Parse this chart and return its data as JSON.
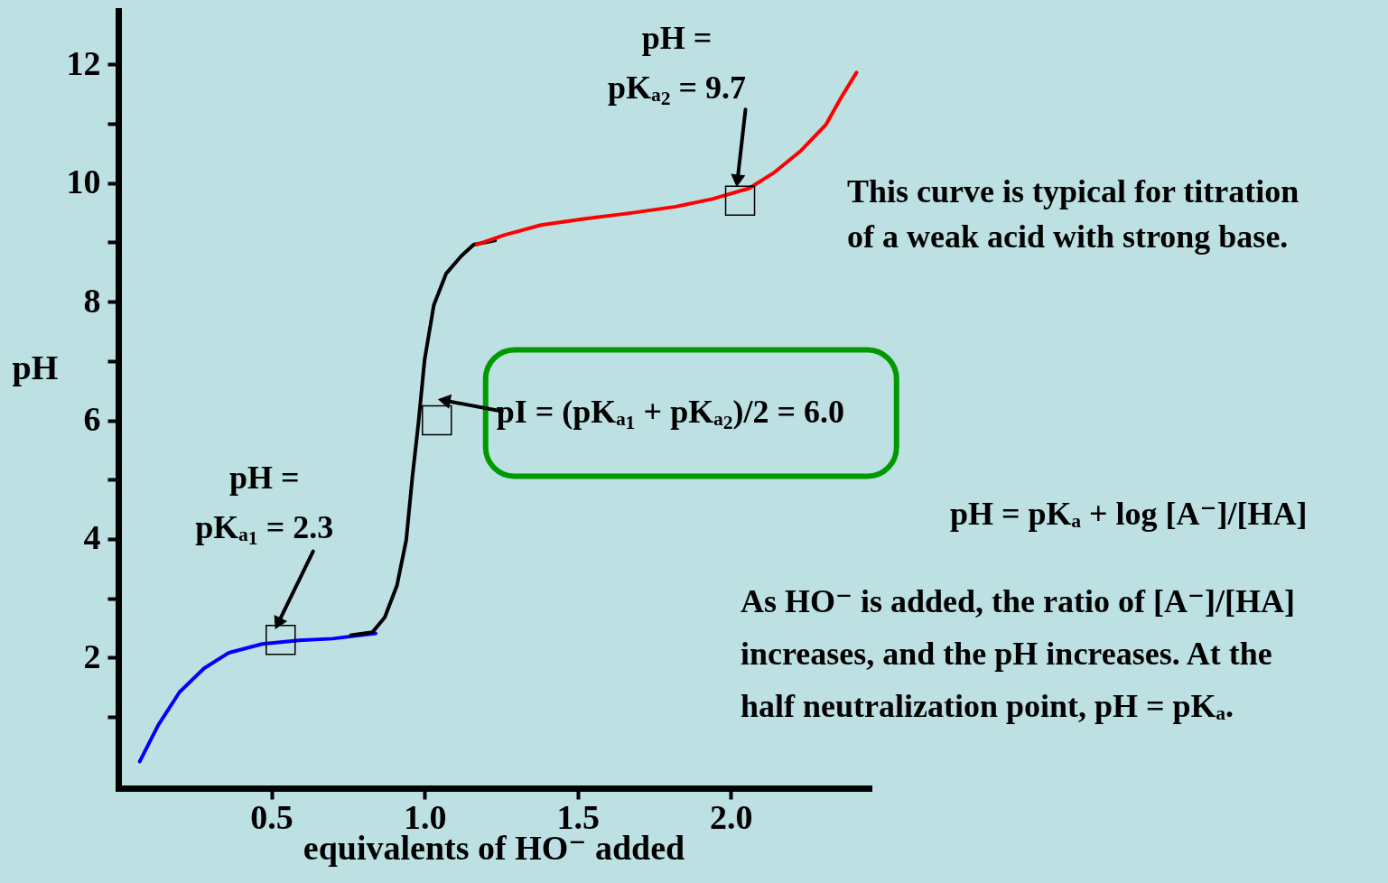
{
  "chart_data": {
    "type": "line",
    "xlabel": "equivalents of HO⁻  added",
    "ylabel": "pH",
    "xlim": [
      0,
      2.45
    ],
    "ylim": [
      -0.2,
      12.9
    ],
    "xticks": [
      0.5,
      {
        "value": 1,
        "label": "1.0"
      },
      1.5,
      {
        "value": 2,
        "label": "2.0"
      }
    ],
    "yticks": [
      {
        "value": 1,
        "label": null
      },
      2,
      {
        "value": 3,
        "label": null
      },
      4,
      {
        "value": 5,
        "label": null
      },
      6,
      {
        "value": 7,
        "label": null
      },
      8,
      {
        "value": 9,
        "label": null
      },
      10,
      {
        "value": 11,
        "label": null
      },
      12
    ],
    "grid": false,
    "series": [
      {
        "color": "#0000ff",
        "x": [
          0.07,
          0.13,
          0.2,
          0.28,
          0.36,
          0.47,
          0.59,
          0.7,
          0.84
        ],
        "values": [
          0.25,
          0.86,
          1.42,
          1.82,
          2.08,
          2.23,
          2.29,
          2.32,
          2.41
        ]
      },
      {
        "color": "#000000",
        "x": [
          0.76,
          0.83,
          0.87,
          0.91,
          0.94,
          0.96,
          0.98,
          1.0,
          1.03,
          1.07,
          1.12,
          1.16,
          1.23
        ],
        "values": [
          2.38,
          2.43,
          2.68,
          3.22,
          3.98,
          5.04,
          5.96,
          7.02,
          7.94,
          8.47,
          8.77,
          8.96,
          9.03
        ]
      },
      {
        "color": "#ff0000",
        "x": [
          1.17,
          1.26,
          1.38,
          1.53,
          1.67,
          1.82,
          1.94,
          2.06,
          2.14,
          2.23,
          2.31,
          2.36,
          2.41
        ],
        "values": [
          8.96,
          9.12,
          9.29,
          9.4,
          9.49,
          9.6,
          9.73,
          9.91,
          10.17,
          10.55,
          10.98,
          11.44,
          11.86
        ]
      }
    ],
    "annotations": [
      {
        "text": "pH = pKₐ₁ = 2.3",
        "x": 0.53,
        "y": 2.3
      },
      {
        "text": "pH = pKₐ₂ = 9.7",
        "x": 2.03,
        "y": 9.7
      },
      {
        "text": "pI = (pKₐ₁ + pKₐ₂)/2 = 6.0",
        "x": 1.04,
        "y": 6.0
      },
      "This curve is typical for titration of a weak acid with strong base.",
      "pH = pKₐ + log [A⁻]/[HA]",
      "As HO⁻ is added, the ratio of [A⁻]/[HA] increases, and the pH increases.  At the half neutralization point, pH = pKₐ."
    ]
  }
}
